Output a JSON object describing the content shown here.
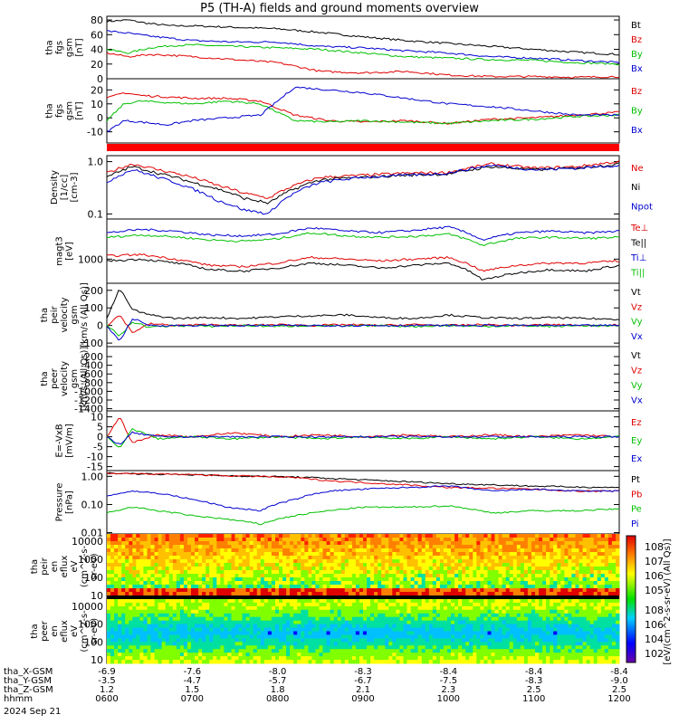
{
  "title": "P5 (TH-A) fields and ground moments overview",
  "chart_data": [
    {
      "type": "line",
      "ylabel": [
        "tha",
        "fgs",
        "gsm",
        "[nT]"
      ],
      "ylim": [
        0,
        85
      ],
      "ytick_labels": [
        "0",
        "20",
        "40",
        "60",
        "80"
      ],
      "ytick_values": [
        0,
        20,
        40,
        60,
        80
      ],
      "legend": [
        {
          "name": "Bt",
          "color": "#000000"
        },
        {
          "name": "Bz",
          "color": "#e00000"
        },
        {
          "name": "By",
          "color": "#00c000"
        },
        {
          "name": "Bx",
          "color": "#0000d0"
        }
      ],
      "x": [
        0,
        0.25,
        0.5,
        0.75,
        1,
        1.5,
        2,
        2.5,
        3,
        3.5,
        4,
        4.5,
        5,
        5.5,
        6
      ],
      "series": [
        {
          "name": "Bt",
          "color": "#000000",
          "values": [
            78,
            80,
            75,
            72,
            72,
            70,
            68,
            63,
            57,
            52,
            48,
            44,
            40,
            36,
            33
          ]
        },
        {
          "name": "By",
          "color": "#00c000",
          "values": [
            40,
            35,
            42,
            45,
            46,
            44,
            42,
            40,
            35,
            30,
            28,
            26,
            25,
            22,
            20
          ]
        },
        {
          "name": "Bx",
          "color": "#0000d0",
          "values": [
            65,
            62,
            58,
            55,
            52,
            50,
            50,
            44,
            42,
            38,
            35,
            30,
            28,
            25,
            22
          ]
        },
        {
          "name": "Bz",
          "color": "#e00000",
          "values": [
            35,
            30,
            33,
            32,
            30,
            26,
            22,
            10,
            8,
            10,
            5,
            3,
            3,
            2,
            3
          ]
        }
      ]
    },
    {
      "type": "line",
      "ylabel": [
        "tha",
        "fgs",
        "gsm",
        "[nT]"
      ],
      "ylim": [
        -18,
        28
      ],
      "ytick_labels": [
        "-10",
        "0",
        "10",
        "20"
      ],
      "ytick_values": [
        -10,
        0,
        10,
        20
      ],
      "legend": [
        {
          "name": "Bz",
          "color": "#e00000"
        },
        {
          "name": "By",
          "color": "#00c000"
        },
        {
          "name": "Bx",
          "color": "#0000d0"
        }
      ],
      "x": [
        0,
        0.2,
        0.4,
        0.7,
        1,
        1.4,
        1.8,
        2.2,
        2.6,
        3,
        3.5,
        4,
        4.5,
        5,
        5.5,
        6
      ],
      "series": [
        {
          "name": "Bz",
          "color": "#e00000",
          "values": [
            14,
            18,
            16,
            15,
            14,
            14,
            12,
            2,
            -2,
            -3,
            -2,
            -4,
            -1,
            0,
            2,
            4
          ]
        },
        {
          "name": "By",
          "color": "#00c000",
          "values": [
            -2,
            10,
            12,
            11,
            10,
            12,
            10,
            -2,
            -3,
            -2,
            -3,
            -4,
            -2,
            -1,
            1,
            2
          ]
        },
        {
          "name": "Bx",
          "color": "#0000d0",
          "values": [
            -10,
            -2,
            -3,
            -5,
            -2,
            0,
            2,
            22,
            20,
            18,
            14,
            10,
            8,
            5,
            2,
            2
          ]
        }
      ]
    },
    {
      "type": "line",
      "ylabel": [
        "Density",
        "[1/cc]",
        "[cm-3]"
      ],
      "yscale": "log",
      "ylim": [
        0.08,
        1.3
      ],
      "ytick_labels": [
        "0.1",
        "1.0"
      ],
      "ytick_values": [
        0.1,
        1.0
      ],
      "legend": [
        {
          "name": "Ne",
          "color": "#e00000"
        },
        {
          "name": "Ni",
          "color": "#000000"
        },
        {
          "name": "Npot",
          "color": "#0000d0"
        }
      ],
      "x": [
        0,
        0.3,
        0.6,
        1,
        1.3,
        1.6,
        1.9,
        2.2,
        2.5,
        3,
        3.5,
        4,
        4.5,
        5,
        5.5,
        6
      ],
      "series": [
        {
          "name": "Ne",
          "color": "#e00000",
          "values": [
            0.6,
            0.9,
            0.7,
            0.5,
            0.35,
            0.25,
            0.2,
            0.35,
            0.5,
            0.55,
            0.6,
            0.62,
            0.9,
            0.75,
            0.8,
            1.0
          ]
        },
        {
          "name": "Ni",
          "color": "#000000",
          "values": [
            0.5,
            0.8,
            0.6,
            0.4,
            0.3,
            0.2,
            0.16,
            0.3,
            0.45,
            0.5,
            0.55,
            0.58,
            0.8,
            0.7,
            0.75,
            0.9
          ]
        },
        {
          "name": "Npot",
          "color": "#0000d0",
          "values": [
            0.4,
            0.7,
            0.5,
            0.3,
            0.18,
            0.12,
            0.1,
            0.25,
            0.4,
            0.5,
            0.55,
            0.6,
            0.85,
            0.7,
            0.75,
            0.85
          ]
        }
      ]
    },
    {
      "type": "line",
      "ylabel": [
        "magt3",
        "[eV]"
      ],
      "yscale": "log",
      "ylim": [
        250,
        10000
      ],
      "ytick_labels": [
        "1000"
      ],
      "ytick_values": [
        1000
      ],
      "legend": [
        {
          "name": "Te⊥",
          "color": "#e00000"
        },
        {
          "name": "Te||",
          "color": "#000000"
        },
        {
          "name": "Ti⊥",
          "color": "#0000d0"
        },
        {
          "name": "Ti||",
          "color": "#00c000"
        }
      ],
      "x": [
        0,
        0.4,
        0.8,
        1.2,
        1.6,
        2,
        2.4,
        2.8,
        3.2,
        3.6,
        4,
        4.4,
        4.8,
        5.2,
        5.6,
        6
      ],
      "series": [
        {
          "name": "Ti⊥",
          "color": "#0000d0",
          "values": [
            4500,
            5500,
            5000,
            4000,
            3800,
            4200,
            6000,
            5000,
            4600,
            5200,
            6300,
            3000,
            4500,
            5000,
            4500,
            5000
          ]
        },
        {
          "name": "Ti||",
          "color": "#00c000",
          "values": [
            3500,
            4000,
            3600,
            3000,
            2800,
            3200,
            4500,
            3800,
            3500,
            3700,
            4200,
            2200,
            3300,
            3500,
            3300,
            3500
          ]
        },
        {
          "name": "Te⊥",
          "color": "#e00000",
          "values": [
            1200,
            1300,
            1000,
            700,
            650,
            800,
            1100,
            1000,
            900,
            1000,
            1100,
            500,
            700,
            800,
            800,
            900
          ]
        },
        {
          "name": "Te||",
          "color": "#000000",
          "values": [
            900,
            1000,
            800,
            550,
            500,
            600,
            800,
            700,
            600,
            700,
            800,
            300,
            450,
            550,
            500,
            700
          ]
        }
      ]
    },
    {
      "type": "line",
      "ylabel": [
        "tha",
        "peir",
        "velocity",
        "gsm",
        "[km/s (All Qs)]"
      ],
      "ylim": [
        -120,
        240
      ],
      "ytick_labels": [
        "-100",
        "0",
        "100",
        "200"
      ],
      "ytick_values": [
        -100,
        0,
        100,
        200
      ],
      "legend": [
        {
          "name": "Vt",
          "color": "#000000"
        },
        {
          "name": "Vz",
          "color": "#e00000"
        },
        {
          "name": "Vy",
          "color": "#00c000"
        },
        {
          "name": "Vx",
          "color": "#0000d0"
        }
      ],
      "x": [
        0,
        0.15,
        0.3,
        0.5,
        0.8,
        1.2,
        1.6,
        2,
        2.4,
        2.8,
        3.2,
        3.6,
        4,
        4.4,
        4.8,
        5.2,
        5.6,
        6
      ],
      "series": [
        {
          "name": "Vt",
          "color": "#000000",
          "values": [
            40,
            210,
            90,
            60,
            40,
            45,
            40,
            50,
            55,
            60,
            45,
            40,
            60,
            45,
            40,
            45,
            40,
            35
          ]
        },
        {
          "name": "Vz",
          "color": "#e00000",
          "values": [
            0,
            60,
            -40,
            10,
            0,
            5,
            0,
            5,
            0,
            5,
            0,
            5,
            0,
            5,
            0,
            5,
            0,
            5
          ]
        },
        {
          "name": "Vy",
          "color": "#00c000",
          "values": [
            0,
            -60,
            20,
            -10,
            0,
            -5,
            0,
            -5,
            0,
            -5,
            0,
            -5,
            0,
            -5,
            0,
            -5,
            0,
            -5
          ]
        },
        {
          "name": "Vx",
          "color": "#0000d0",
          "values": [
            0,
            -90,
            40,
            0,
            0,
            0,
            0,
            0,
            0,
            0,
            0,
            0,
            0,
            0,
            0,
            0,
            0,
            0
          ]
        }
      ]
    },
    {
      "type": "line",
      "ylabel": [
        "tha",
        "peer",
        "velocity",
        "gsm",
        "[km/s (All Qs)]"
      ],
      "ylim": [
        -1450,
        30
      ],
      "ytick_labels": [
        "-200",
        "-400",
        "-600",
        "-800",
        "-1000",
        "-1200",
        "-1400"
      ],
      "ytick_values": [
        -200,
        -400,
        -600,
        -800,
        -1000,
        -1200,
        -1400
      ],
      "legend": [
        {
          "name": "Vt",
          "color": "#000000"
        },
        {
          "name": "Vz",
          "color": "#e00000"
        },
        {
          "name": "Vy",
          "color": "#00c000"
        },
        {
          "name": "Vx",
          "color": "#0000d0"
        }
      ],
      "x": [],
      "series": []
    },
    {
      "type": "line",
      "ylabel": [
        "E=-VxB",
        "[mV/m]"
      ],
      "ylim": [
        -17,
        13
      ],
      "ytick_labels": [
        "-15",
        "-10",
        "-5",
        "0",
        "5",
        "10"
      ],
      "ytick_values": [
        -15,
        -10,
        -5,
        0,
        5,
        10
      ],
      "legend": [
        {
          "name": "Ez",
          "color": "#e00000"
        },
        {
          "name": "Ey",
          "color": "#00c000"
        },
        {
          "name": "Ex",
          "color": "#0000d0"
        }
      ],
      "x": [
        0,
        0.15,
        0.3,
        0.6,
        1,
        1.5,
        2,
        2.5,
        3,
        3.5,
        4,
        4.5,
        5,
        5.5,
        6
      ],
      "series": [
        {
          "name": "Ez",
          "color": "#e00000",
          "values": [
            0,
            10,
            -3,
            1,
            0,
            2,
            0,
            1,
            0,
            1,
            0,
            1,
            0,
            1,
            0
          ]
        },
        {
          "name": "Ey",
          "color": "#00c000",
          "values": [
            0,
            -6,
            4,
            -1,
            0,
            -1,
            0,
            -1,
            0,
            -1,
            0,
            -1,
            0,
            -1,
            0
          ]
        },
        {
          "name": "Ex",
          "color": "#0000d0",
          "values": [
            0,
            -4,
            2,
            0,
            0,
            0,
            0,
            0,
            0,
            0,
            0,
            0,
            0,
            0,
            0
          ]
        }
      ]
    },
    {
      "type": "line",
      "ylabel": [
        "Pressure",
        "[nPa]"
      ],
      "yscale": "log",
      "ylim": [
        0.009,
        1.6
      ],
      "ytick_labels": [
        "0.01",
        "0.10",
        "1.00"
      ],
      "ytick_values": [
        0.01,
        0.1,
        1.0
      ],
      "legend": [
        {
          "name": "Pt",
          "color": "#000000"
        },
        {
          "name": "Pb",
          "color": "#e00000"
        },
        {
          "name": "Pe",
          "color": "#00c000"
        },
        {
          "name": "Pi",
          "color": "#0000d0"
        }
      ],
      "x": [
        0,
        0.3,
        0.6,
        1,
        1.4,
        1.8,
        2.2,
        2.6,
        3,
        3.5,
        4,
        4.5,
        5,
        5.5,
        6
      ],
      "series": [
        {
          "name": "Pt",
          "color": "#000000",
          "values": [
            1.3,
            1.25,
            1.2,
            1.15,
            1.05,
            1.0,
            0.95,
            0.85,
            0.75,
            0.65,
            0.55,
            0.5,
            0.45,
            0.42,
            0.4
          ]
        },
        {
          "name": "Pb",
          "color": "#e00000",
          "values": [
            1.3,
            1.25,
            1.2,
            1.15,
            1.05,
            1.0,
            0.9,
            0.7,
            0.6,
            0.5,
            0.4,
            0.38,
            0.35,
            0.3,
            0.3
          ]
        },
        {
          "name": "Pi",
          "color": "#0000d0",
          "values": [
            0.2,
            0.3,
            0.25,
            0.15,
            0.08,
            0.06,
            0.15,
            0.3,
            0.35,
            0.4,
            0.45,
            0.3,
            0.35,
            0.3,
            0.3
          ]
        },
        {
          "name": "Pe",
          "color": "#00c000",
          "values": [
            0.05,
            0.08,
            0.06,
            0.04,
            0.03,
            0.02,
            0.04,
            0.06,
            0.08,
            0.08,
            0.09,
            0.05,
            0.06,
            0.06,
            0.07
          ]
        }
      ]
    },
    {
      "type": "heatmap",
      "ylabel": [
        "tha",
        "peir",
        "en",
        "eflux",
        "eV",
        "(cm^2-s-",
        "sr-eV)"
      ],
      "ytick_labels": [
        "10",
        "100",
        "1000",
        "10000"
      ],
      "description_range": "ion energy flux spectrogram"
    },
    {
      "type": "heatmap",
      "ylabel": [
        "tha",
        "peer",
        "en",
        "eflux",
        "eV",
        "(cm^2-s-",
        "sr-eV)"
      ],
      "ytick_labels": [
        "10",
        "100",
        "1000",
        "10000"
      ],
      "description_range": "electron energy flux spectrogram"
    }
  ],
  "colorbar": {
    "label": "[eV/(cm^2-s-sr-eV) (All Qs)]",
    "ticks_upper": [
      "10^8",
      "10^7",
      "10^6",
      "10^5"
    ],
    "ticks_lower": [
      "10^8",
      "10^6",
      "10^4",
      "10^2"
    ]
  },
  "x_axis": {
    "rows": [
      {
        "label": "tha_X-GSM",
        "values": [
          "-6.9",
          "-7.6",
          "-8.0",
          "-8.3",
          "-8.4",
          "-8.4",
          "-8.4"
        ]
      },
      {
        "label": "tha_Y-GSM",
        "values": [
          "-3.5",
          "-4.7",
          "-5.7",
          "-6.7",
          "-7.5",
          "-8.3",
          "-9.0"
        ]
      },
      {
        "label": "tha_Z-GSM",
        "values": [
          "1.2",
          "1.5",
          "1.8",
          "2.1",
          "2.3",
          "2.5",
          "2.5"
        ]
      },
      {
        "label": "hhmm",
        "values": [
          "0600",
          "0700",
          "0800",
          "0900",
          "1000",
          "1100",
          "1200"
        ]
      }
    ],
    "date": "2024 Sep 21"
  }
}
